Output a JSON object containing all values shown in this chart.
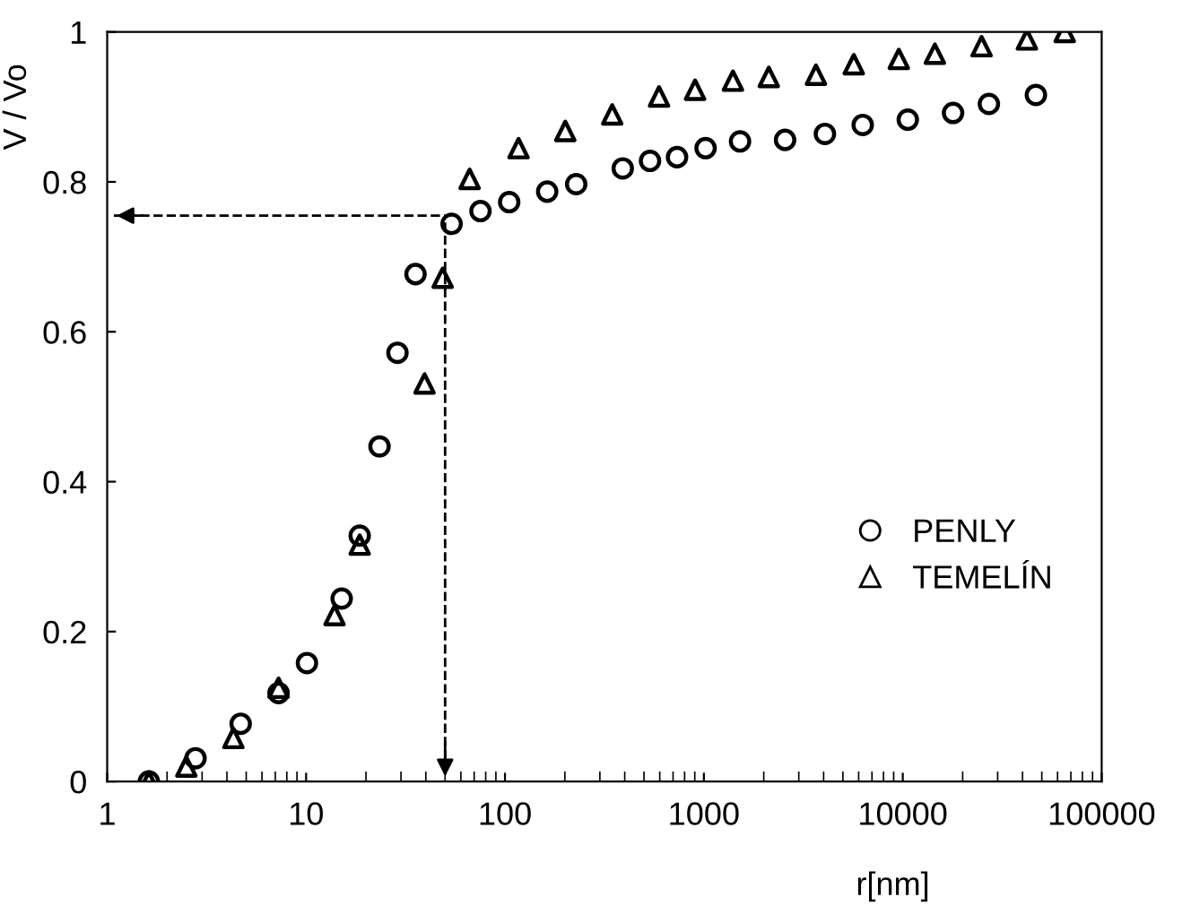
{
  "chart_data": {
    "type": "scatter",
    "xlabel": "r[nm]",
    "ylabel": "V / Vo",
    "log": "x",
    "xlim": [
      1,
      100000
    ],
    "xticks": [
      1,
      10,
      100,
      1000,
      10000,
      100000
    ],
    "ylim": [
      0,
      1
    ],
    "yticks": [
      0,
      {
        "value": 0.2,
        "label": "0.2"
      },
      {
        "value": 0.4,
        "label": "0.4"
      },
      {
        "value": 0.6,
        "label": "0.6"
      },
      {
        "value": 0.8,
        "label": "0.8"
      },
      1
    ],
    "grid": false,
    "legend": "right",
    "ref_lines": [
      {
        "axis": "y",
        "value": 0.755,
        "line_style": "dashed",
        "color": "#000000"
      },
      {
        "axis": "x",
        "value": 50,
        "line_style": "dashed",
        "color": "#000000"
      }
    ],
    "series": [
      {
        "name": "PENLY",
        "color": "#000000",
        "marker": "circle",
        "x": [
          1.62,
          2.78,
          4.69,
          7.27,
          10.1,
          15.1,
          18.6,
          23.4,
          28.8,
          35.5,
          53.9,
          75.3,
          105,
          163,
          228,
          391,
          536,
          733,
          1020,
          1520,
          2560,
          4060,
          6290,
          10600,
          17900,
          27100,
          46700
        ],
        "values": [
          0,
          0.031,
          0.077,
          0.118,
          0.158,
          0.244,
          0.328,
          0.447,
          0.572,
          0.677,
          0.744,
          0.761,
          0.773,
          0.787,
          0.797,
          0.818,
          0.828,
          0.833,
          0.845,
          0.854,
          0.856,
          0.864,
          0.876,
          0.883,
          0.892,
          0.904,
          0.916
        ]
      },
      {
        "name": "TEMELÍN",
        "color": "#000000",
        "marker": "triangle",
        "x": [
          1.62,
          2.5,
          4.31,
          7.27,
          13.9,
          18.6,
          39.4,
          48.6,
          66.4,
          117,
          201,
          346,
          595,
          903,
          1400,
          2120,
          3660,
          5670,
          9550,
          14500,
          24900,
          42100,
          65200
        ],
        "values": [
          0,
          0.02,
          0.058,
          0.125,
          0.222,
          0.316,
          0.531,
          0.672,
          0.804,
          0.845,
          0.868,
          0.89,
          0.914,
          0.923,
          0.935,
          0.94,
          0.943,
          0.957,
          0.964,
          0.971,
          0.981,
          0.99,
          1.0
        ]
      }
    ]
  }
}
